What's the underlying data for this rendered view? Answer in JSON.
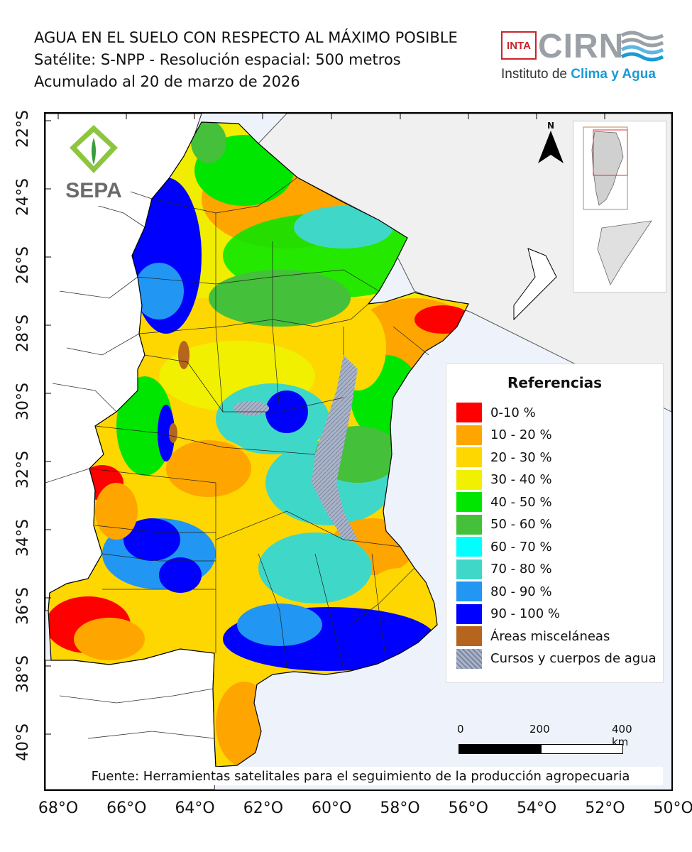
{
  "header": {
    "title": "AGUA EN EL SUELO CON RESPECTO AL MÁXIMO POSIBLE",
    "subtitle": "Satélite: S-NPP - Resolución espacial: 500 metros",
    "date_line": "Acumulado al 20 de marzo de 2026"
  },
  "logos": {
    "inta": "INTA",
    "cirn": "CIRN",
    "instituto_prefix": "Instituto de ",
    "instituto_accent": "Clima y Agua",
    "sepa": "SEPA"
  },
  "axes": {
    "longitudes": [
      "68°O",
      "66°O",
      "64°O",
      "62°O",
      "60°O",
      "58°O",
      "56°O",
      "54°O",
      "52°O",
      "50°O"
    ],
    "latitudes": [
      "22°S",
      "24°S",
      "26°S",
      "28°S",
      "30°S",
      "32°S",
      "34°S",
      "36°S",
      "38°S",
      "40°S"
    ]
  },
  "north_arrow": "N",
  "legend": {
    "title": "Referencias",
    "items": [
      {
        "label": "0-10 %",
        "color": "#ff0000"
      },
      {
        "label": "10 - 20 %",
        "color": "#ffa500"
      },
      {
        "label": "20 - 30 %",
        "color": "#ffd700"
      },
      {
        "label": "30 - 40 %",
        "color": "#f0f000"
      },
      {
        "label": "40 - 50 %",
        "color": "#00e600"
      },
      {
        "label": "50 - 60 %",
        "color": "#44c03a"
      },
      {
        "label": "60 - 70 %",
        "color": "#00ffff"
      },
      {
        "label": "70 - 80 %",
        "color": "#3fd8c8"
      },
      {
        "label": "80 - 90 %",
        "color": "#2196f3"
      },
      {
        "label": "90 - 100 %",
        "color": "#0000ff"
      },
      {
        "label": "Áreas misceláneas",
        "color": "#b5651d"
      },
      {
        "label": "Cursos y cuerpos de agua",
        "color": "#aab4c8"
      }
    ]
  },
  "scale_bar": {
    "labels": [
      "0",
      "200",
      "400 km"
    ]
  },
  "source": "Fuente: Herramientas satelitales para el seguimiento de la producción agropecuaria",
  "colors": {
    "ocean": "#eef3fb",
    "land_outside": "#ffffff",
    "neighbors": "#f0f0f0",
    "border": "#000000"
  }
}
